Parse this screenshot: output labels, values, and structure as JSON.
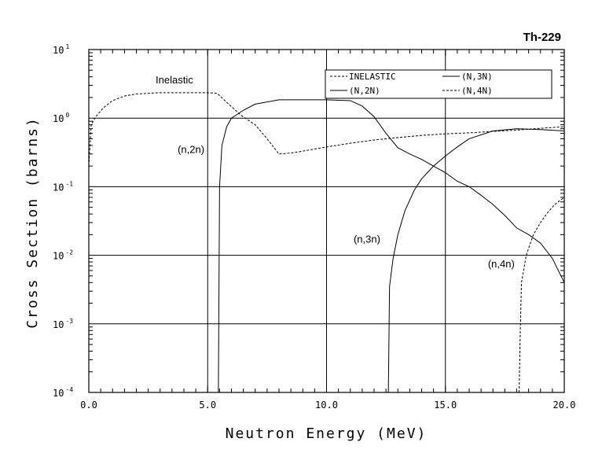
{
  "chart_data": {
    "type": "line",
    "title": "Th-229",
    "xlabel": "Neutron Energy (MeV)",
    "ylabel": "Cross Section (barns)",
    "xlim": [
      0,
      20
    ],
    "ylim": [
      0.0001,
      10
    ],
    "yscale": "log",
    "grid": true,
    "legend_position": "top-right",
    "x_ticks": [
      "0.0",
      "5.0",
      "10.0",
      "15.0",
      "20.0"
    ],
    "y_ticks": [
      {
        "mantissa": "10",
        "exponent": "1",
        "value": 10
      },
      {
        "mantissa": "10",
        "exponent": "0",
        "value": 1
      },
      {
        "mantissa": "10",
        "exponent": "-1",
        "value": 0.1
      },
      {
        "mantissa": "10",
        "exponent": "-2",
        "value": 0.01
      },
      {
        "mantissa": "10",
        "exponent": "-3",
        "value": 0.001
      },
      {
        "mantissa": "10",
        "exponent": "-4",
        "value": 0.0001
      }
    ],
    "series": [
      {
        "name": "INELASTIC",
        "style": "dashed",
        "color": "#000000",
        "x": [
          0.0,
          0.1,
          0.3,
          0.6,
          1.0,
          1.5,
          2.0,
          2.5,
          3.0,
          4.0,
          5.0,
          5.4,
          5.8,
          6.4,
          7.0,
          7.5,
          8.0,
          8.5,
          9.0,
          10.0,
          11.0,
          12.0,
          13.0,
          14.0,
          15.0,
          16.0,
          17.0,
          18.0,
          19.0,
          20.0
        ],
        "y": [
          0.2,
          0.8,
          1.05,
          1.4,
          1.8,
          2.1,
          2.25,
          2.3,
          2.35,
          2.35,
          2.35,
          2.3,
          1.7,
          1.1,
          0.8,
          0.5,
          0.3,
          0.31,
          0.33,
          0.38,
          0.43,
          0.48,
          0.52,
          0.56,
          0.59,
          0.61,
          0.64,
          0.67,
          0.71,
          0.75
        ]
      },
      {
        "name": "(N,2N)",
        "style": "solid",
        "color": "#000000",
        "x": [
          5.45,
          5.5,
          5.6,
          5.8,
          6.0,
          6.5,
          7.0,
          8.0,
          9.0,
          10.0,
          11.0,
          11.5,
          12.0,
          12.5,
          13.0,
          13.5,
          14.0,
          14.5,
          15.0,
          15.5,
          16.0,
          16.5,
          17.0,
          17.5,
          18.0,
          18.5,
          19.0,
          19.5,
          20.0
        ],
        "y": [
          0.0001,
          0.1,
          0.4,
          0.75,
          1.0,
          1.3,
          1.6,
          1.85,
          1.85,
          1.85,
          1.8,
          1.5,
          1.05,
          0.6,
          0.37,
          0.3,
          0.25,
          0.2,
          0.16,
          0.12,
          0.1,
          0.075,
          0.055,
          0.038,
          0.025,
          0.02,
          0.015,
          0.009,
          0.004
        ]
      },
      {
        "name": "(N,3N)",
        "style": "solid",
        "color": "#000000",
        "x": [
          12.6,
          12.65,
          12.8,
          13.0,
          13.3,
          13.7,
          14.0,
          14.5,
          15.0,
          15.5,
          16.0,
          17.0,
          18.0,
          19.0,
          20.0
        ],
        "y": [
          0.0001,
          0.0035,
          0.009,
          0.02,
          0.045,
          0.09,
          0.13,
          0.2,
          0.28,
          0.38,
          0.5,
          0.65,
          0.7,
          0.68,
          0.65
        ]
      },
      {
        "name": "(N,4N)",
        "style": "dashed",
        "color": "#000000",
        "x": [
          18.1,
          18.15,
          18.2,
          18.4,
          18.7,
          19.0,
          19.3,
          19.6,
          20.0
        ],
        "y": [
          0.0001,
          0.0008,
          0.004,
          0.01,
          0.02,
          0.03,
          0.042,
          0.055,
          0.07
        ]
      }
    ],
    "annotations": [
      {
        "text": "Inelastic",
        "x": 3.6,
        "y": 3.2
      },
      {
        "text": "(n,2n)",
        "x": 4.3,
        "y": 0.31
      },
      {
        "text": "(n,3n)",
        "x": 11.7,
        "y": 0.0152
      },
      {
        "text": "(n,4n)",
        "x": 17.35,
        "y": 0.0067
      }
    ],
    "vertical_lines_x": [
      5.0,
      10.0,
      15.0
    ]
  }
}
